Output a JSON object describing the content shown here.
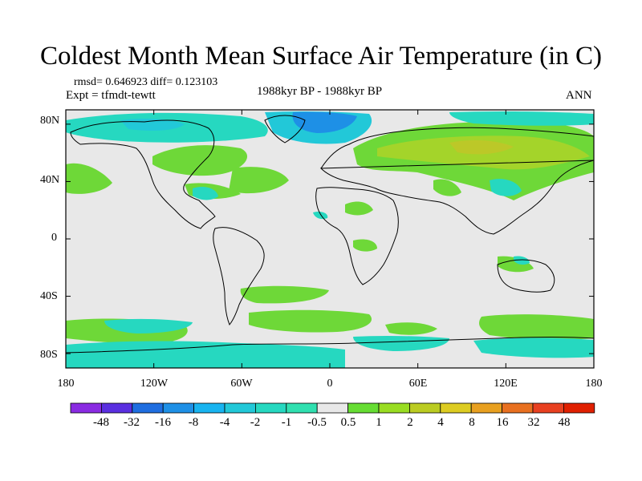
{
  "title": "Coldest Month Mean Surface Air Temperature (in C)",
  "stats": "rmsd= 0.646923  diff= 0.123103",
  "experiment": "Expt = tfmdt-tewtt",
  "period": "1988kyr BP - 1988kyr BP",
  "season": "ANN",
  "map": {
    "lat_labels": [
      "80N",
      "40N",
      "0",
      "40S",
      "80S"
    ],
    "lon_labels": [
      "180",
      "120W",
      "60W",
      "0",
      "60E",
      "120E",
      "180"
    ],
    "lat_values": [
      80,
      40,
      0,
      -40,
      -80
    ],
    "lon_values": [
      -180,
      -120,
      -60,
      0,
      60,
      120,
      180
    ],
    "lat_range": [
      -90,
      90
    ],
    "lon_range": [
      -180,
      180
    ]
  },
  "colorbar": {
    "colors": [
      "#8a2be2",
      "#5a2fe0",
      "#1f6ee0",
      "#1e90e6",
      "#18b4f0",
      "#22c8d8",
      "#26d8c0",
      "#30e0b0",
      "#e8e8e8",
      "#66dd33",
      "#99dd22",
      "#bbcc22",
      "#ddcc22",
      "#e8a020",
      "#e87020",
      "#e84020",
      "#e02000"
    ],
    "labels": [
      "-48",
      "-32",
      "-16",
      "-8",
      "-4",
      "-2",
      "-1",
      "-0.5",
      "0.5",
      "1",
      "2",
      "4",
      "8",
      "16",
      "32",
      "48"
    ]
  }
}
